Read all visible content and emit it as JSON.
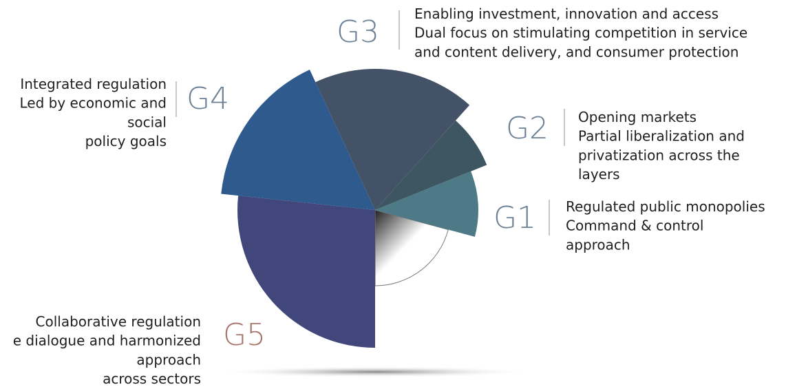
{
  "groups": [
    {
      "label": "G1",
      "lines": [
        "Regulated public monopolies",
        "Command & control",
        "approach"
      ]
    },
    {
      "label": "G2",
      "lines": [
        "Opening markets",
        "Partial liberalization and",
        "privatization across the",
        "layers"
      ]
    },
    {
      "label": "G3",
      "lines": [
        "Enabling investment, innovation and access",
        "Dual focus on stimulating competition in service",
        "and content delivery, and consumer protection"
      ]
    },
    {
      "label": "G4",
      "lines": [
        "Integrated regulation",
        "Led by economic and",
        "social",
        "policy goals"
      ]
    },
    {
      "label": "G5",
      "lines": [
        "Collaborative regulation",
        "e dialogue and harmonized",
        "approach",
        "across sectors"
      ]
    }
  ]
}
